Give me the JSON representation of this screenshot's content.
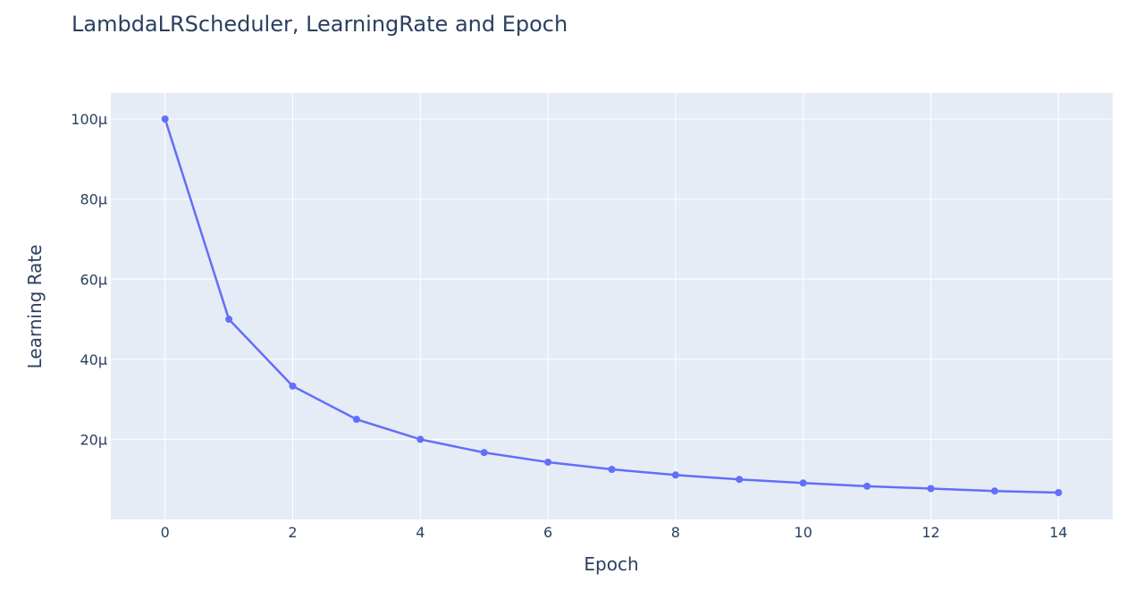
{
  "chart_data": {
    "type": "line",
    "title": "LambdaLRScheduler, LearningRate and Epoch",
    "xlabel": "Epoch",
    "ylabel": "Learning Rate",
    "x": [
      0,
      1,
      2,
      3,
      4,
      5,
      6,
      7,
      8,
      9,
      10,
      11,
      12,
      13,
      14
    ],
    "series": [
      {
        "values": [
          0.0001,
          5e-05,
          3.33e-05,
          2.5e-05,
          2e-05,
          1.67e-05,
          1.43e-05,
          1.25e-05,
          1.11e-05,
          1e-05,
          9.1e-06,
          8.3e-06,
          7.7e-06,
          7.1e-06,
          6.7e-06
        ]
      }
    ],
    "xlim": [
      -0.85,
      14.85
    ],
    "ylim": [
      0.0,
      0.0001065
    ],
    "xticks": [
      0,
      2,
      4,
      6,
      8,
      10,
      12,
      14
    ],
    "xtick_labels": [
      "0",
      "2",
      "4",
      "6",
      "8",
      "10",
      "12",
      "14"
    ],
    "yticks": [
      2e-05,
      4e-05,
      6e-05,
      8e-05,
      0.0001
    ],
    "ytick_labels": [
      "20μ",
      "40μ",
      "60μ",
      "80μ",
      "100μ"
    ],
    "grid": true,
    "colors": {
      "line": "#636efa",
      "plot_bg": "#e5ecf6",
      "grid": "#ffffff",
      "text": "#2a3f5f"
    }
  }
}
